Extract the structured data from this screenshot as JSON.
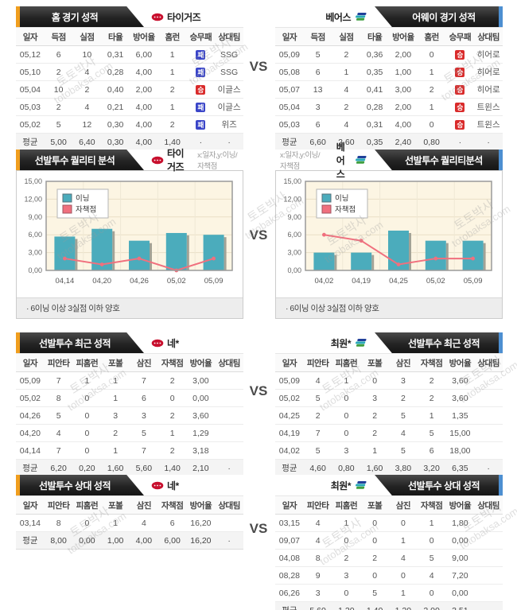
{
  "page": {
    "vs": "VS",
    "watermark_line1": "토토박사",
    "watermark_line2": "totobaksa.com"
  },
  "colors": {
    "accent_orange": "#f09e1e",
    "accent_blue": "#4d8fd1",
    "bar_teal": "#4bacbc",
    "line_pink": "#f0707e",
    "win_red": "#d92b2b",
    "loss_blue": "#3a45c8",
    "plot_bg": "#fcf5e3"
  },
  "columns": {
    "games": [
      "일자",
      "득점",
      "실점",
      "타율",
      "방어율",
      "홈런",
      "승무패",
      "상대팀"
    ],
    "pitcher": [
      "일자",
      "피안타",
      "피홈런",
      "포볼",
      "삼진",
      "자책점",
      "방어율",
      "상대팀"
    ]
  },
  "sections": [
    {
      "name": "home-away-record",
      "left": {
        "title": "홈 경기 성적",
        "team": "타이거즈",
        "icon": "tigers-logo-icon",
        "rows": [
          [
            "05,12",
            "6",
            "10",
            "0,31",
            "6,00",
            "1",
            "패",
            "SSG"
          ],
          [
            "05,10",
            "2",
            "4",
            "0,28",
            "4,00",
            "1",
            "패",
            "SSG"
          ],
          [
            "05,04",
            "10",
            "2",
            "0,40",
            "2,00",
            "2",
            "승",
            "이글스"
          ],
          [
            "05,03",
            "2",
            "4",
            "0,21",
            "4,00",
            "1",
            "패",
            "이글스"
          ],
          [
            "05,02",
            "5",
            "12",
            "0,30",
            "4,00",
            "2",
            "패",
            "위즈"
          ]
        ],
        "avg": [
          "평균",
          "5,00",
          "6,40",
          "0,30",
          "4,00",
          "1,40",
          "·",
          "·"
        ]
      },
      "right": {
        "title": "어웨이 경기 성적",
        "team": "베어스",
        "icon": "bears-flag-icon",
        "rows": [
          [
            "05,09",
            "5",
            "2",
            "0,36",
            "2,00",
            "0",
            "승",
            "히어로"
          ],
          [
            "05,08",
            "6",
            "1",
            "0,35",
            "1,00",
            "1",
            "승",
            "히어로"
          ],
          [
            "05,07",
            "13",
            "4",
            "0,41",
            "3,00",
            "2",
            "승",
            "히어로"
          ],
          [
            "05,04",
            "3",
            "2",
            "0,28",
            "2,00",
            "1",
            "승",
            "트윈스"
          ],
          [
            "05,03",
            "6",
            "4",
            "0,31",
            "4,00",
            "0",
            "승",
            "트윈스"
          ]
        ],
        "avg": [
          "평균",
          "6,60",
          "2,60",
          "0,35",
          "2,40",
          "0,80",
          "·",
          "·"
        ]
      }
    },
    {
      "name": "pitcher-quality-analysis",
      "left": {
        "title": "선발투수 퀄리티 분석",
        "team": "타이거즈",
        "icon": "tigers-logo-icon",
        "axis_note": "x:일자,y:이닝/자책점",
        "note": "·  6이닝 이상 3실점 이하 양호"
      },
      "right": {
        "title": "선발투수 퀄리티분석",
        "team": "베어스",
        "icon": "bears-flag-icon",
        "axis_note": "x:일자,y:이닝/자책점",
        "note": "·  6이닝 이상 3실점 이하 양호"
      }
    },
    {
      "name": "pitcher-recent-record",
      "left": {
        "title": "선발투수 최근 성적",
        "team": "네*",
        "icon": "tigers-logo-icon",
        "rows": [
          [
            "05,09",
            "7",
            "1",
            "1",
            "7",
            "2",
            "3,00",
            ""
          ],
          [
            "05,02",
            "8",
            "0",
            "1",
            "6",
            "0",
            "0,00",
            ""
          ],
          [
            "04,26",
            "5",
            "0",
            "3",
            "3",
            "2",
            "3,60",
            ""
          ],
          [
            "04,20",
            "4",
            "0",
            "2",
            "5",
            "1",
            "1,29",
            ""
          ],
          [
            "04,14",
            "7",
            "0",
            "1",
            "7",
            "2",
            "3,18",
            ""
          ]
        ],
        "avg": [
          "평균",
          "6,20",
          "0,20",
          "1,60",
          "5,60",
          "1,40",
          "2,10",
          "·"
        ]
      },
      "right": {
        "title": "선발투수 최근 성적",
        "team": "최원*",
        "icon": "bears-flag-icon",
        "rows": [
          [
            "05,09",
            "4",
            "1",
            "0",
            "3",
            "2",
            "3,60",
            ""
          ],
          [
            "05,02",
            "5",
            "0",
            "3",
            "2",
            "2",
            "3,60",
            ""
          ],
          [
            "04,25",
            "2",
            "0",
            "2",
            "5",
            "1",
            "1,35",
            ""
          ],
          [
            "04,19",
            "7",
            "0",
            "2",
            "4",
            "5",
            "15,00",
            ""
          ],
          [
            "04,02",
            "5",
            "3",
            "1",
            "5",
            "6",
            "18,00",
            ""
          ]
        ],
        "avg": [
          "평균",
          "4,60",
          "0,80",
          "1,60",
          "3,80",
          "3,20",
          "6,35",
          "·"
        ]
      }
    },
    {
      "name": "pitcher-vs-opponent-record",
      "left": {
        "title": "선발투수 상대 성적",
        "team": "네*",
        "icon": "tigers-logo-icon",
        "rows": [
          [
            "03,14",
            "8",
            "0",
            "1",
            "4",
            "6",
            "16,20",
            ""
          ]
        ],
        "avg": [
          "평균",
          "8,00",
          "0,00",
          "1,00",
          "4,00",
          "6,00",
          "16,20",
          "·"
        ]
      },
      "right": {
        "title": "선발투수 상대 성적",
        "team": "최원*",
        "icon": "bears-flag-icon",
        "rows": [
          [
            "03,15",
            "4",
            "1",
            "0",
            "0",
            "1",
            "1,80",
            ""
          ],
          [
            "09,07",
            "4",
            "0",
            "0",
            "1",
            "0",
            "0,00",
            ""
          ],
          [
            "04,08",
            "8",
            "2",
            "2",
            "4",
            "5",
            "9,00",
            ""
          ],
          [
            "08,28",
            "9",
            "3",
            "0",
            "0",
            "4",
            "7,20",
            ""
          ],
          [
            "06,26",
            "3",
            "0",
            "5",
            "1",
            "0",
            "0,00",
            ""
          ]
        ],
        "avg": [
          "평균",
          "5,60",
          "1,20",
          "1,40",
          "1,20",
          "2,00",
          "3,51",
          "·"
        ]
      }
    }
  ],
  "chart_data": [
    {
      "type": "bar",
      "title": "선발투수 퀄리티 분석 - 타이거즈",
      "categories": [
        "04,14",
        "04,20",
        "04,26",
        "05,02",
        "05,09"
      ],
      "series": [
        {
          "name": "이닝",
          "type": "bar",
          "values": [
            5.7,
            7,
            5,
            6.3,
            6
          ]
        },
        {
          "name": "자책점",
          "type": "line",
          "values": [
            2,
            1,
            2,
            0,
            2
          ]
        }
      ],
      "ylim": [
        0,
        15
      ],
      "yticks": [
        "0,00",
        "3,00",
        "6,00",
        "9,00",
        "12,00",
        "15,00"
      ],
      "grid": true,
      "legend_position": "top-left"
    },
    {
      "type": "bar",
      "title": "선발투수 퀄리티분석 - 베어스",
      "categories": [
        "04,02",
        "04,19",
        "04,25",
        "05,02",
        "05,09"
      ],
      "series": [
        {
          "name": "이닝",
          "type": "bar",
          "values": [
            3,
            3,
            6.7,
            5,
            5
          ]
        },
        {
          "name": "자책점",
          "type": "line",
          "values": [
            6,
            5,
            1,
            2,
            2
          ]
        }
      ],
      "ylim": [
        0,
        15
      ],
      "yticks": [
        "0,00",
        "3,00",
        "6,00",
        "9,00",
        "12,00",
        "15,00"
      ],
      "grid": true,
      "legend_position": "top-left"
    }
  ]
}
